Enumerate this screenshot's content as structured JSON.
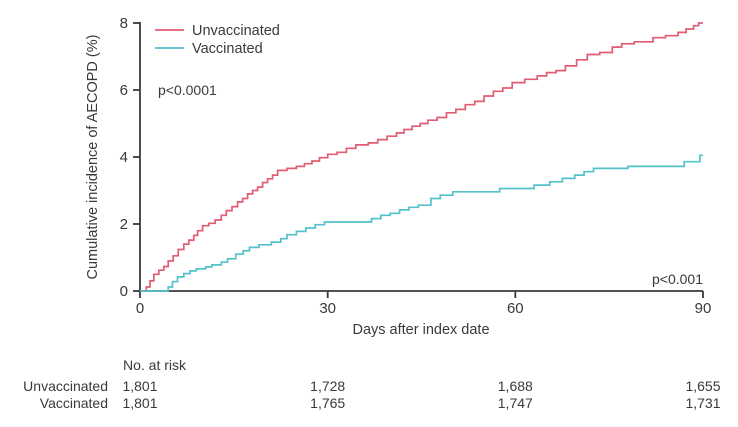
{
  "chart_data": {
    "type": "line",
    "subtype": "kaplan-meier-step",
    "title": "",
    "xlabel": "Days after index date",
    "ylabel": "Cumulative incidence of AECOPD (%)",
    "xlim": [
      0,
      90
    ],
    "ylim": [
      0,
      8
    ],
    "x_ticks": [
      0,
      30,
      60,
      90
    ],
    "y_ticks": [
      0,
      2,
      4,
      6,
      8
    ],
    "grid": false,
    "legend_position": "upper-left-inside",
    "axis_color": "#3a3a3a",
    "annotations": [
      {
        "text": "p<0.0001",
        "position": "upper-left"
      },
      {
        "text": "p<0.001",
        "position": "lower-right"
      }
    ],
    "series": [
      {
        "name": "Unvaccinated",
        "color": "#e25c72",
        "step": true,
        "points": [
          [
            0,
            0
          ],
          [
            1,
            0.12
          ],
          [
            1.6,
            0.3
          ],
          [
            2.2,
            0.5
          ],
          [
            3,
            0.62
          ],
          [
            3.8,
            0.73
          ],
          [
            4.5,
            0.9
          ],
          [
            5.3,
            1.05
          ],
          [
            6.1,
            1.24
          ],
          [
            7,
            1.4
          ],
          [
            7.8,
            1.52
          ],
          [
            8.6,
            1.66
          ],
          [
            9.2,
            1.8
          ],
          [
            10,
            1.95
          ],
          [
            11,
            2.02
          ],
          [
            12,
            2.12
          ],
          [
            13,
            2.26
          ],
          [
            13.8,
            2.4
          ],
          [
            14.7,
            2.52
          ],
          [
            15.6,
            2.66
          ],
          [
            16.4,
            2.76
          ],
          [
            17.2,
            2.9
          ],
          [
            18,
            3.0
          ],
          [
            18.8,
            3.1
          ],
          [
            19.6,
            3.24
          ],
          [
            20.4,
            3.35
          ],
          [
            21.2,
            3.46
          ],
          [
            22,
            3.6
          ],
          [
            23.5,
            3.66
          ],
          [
            25,
            3.72
          ],
          [
            26.3,
            3.8
          ],
          [
            27.5,
            3.88
          ],
          [
            28.7,
            3.98
          ],
          [
            30,
            4.08
          ],
          [
            31.5,
            4.14
          ],
          [
            33,
            4.26
          ],
          [
            34.5,
            4.36
          ],
          [
            36.5,
            4.42
          ],
          [
            38,
            4.52
          ],
          [
            39.5,
            4.62
          ],
          [
            41,
            4.72
          ],
          [
            42.2,
            4.82
          ],
          [
            43.5,
            4.92
          ],
          [
            44.8,
            5.0
          ],
          [
            46,
            5.1
          ],
          [
            47.5,
            5.18
          ],
          [
            49,
            5.32
          ],
          [
            50.5,
            5.42
          ],
          [
            52,
            5.56
          ],
          [
            53.5,
            5.66
          ],
          [
            55,
            5.82
          ],
          [
            56.5,
            5.96
          ],
          [
            58,
            6.06
          ],
          [
            59.5,
            6.22
          ],
          [
            61.5,
            6.32
          ],
          [
            63.5,
            6.42
          ],
          [
            65,
            6.52
          ],
          [
            66.5,
            6.58
          ],
          [
            68,
            6.72
          ],
          [
            69.8,
            6.9
          ],
          [
            71.5,
            7.06
          ],
          [
            73.5,
            7.12
          ],
          [
            75.5,
            7.28
          ],
          [
            77,
            7.38
          ],
          [
            79,
            7.44
          ],
          [
            82,
            7.56
          ],
          [
            84,
            7.62
          ],
          [
            86,
            7.72
          ],
          [
            87.3,
            7.82
          ],
          [
            88.5,
            7.92
          ],
          [
            89.3,
            8.0
          ],
          [
            90,
            8.0
          ]
        ]
      },
      {
        "name": "Vaccinated",
        "color": "#53c2cb",
        "step": true,
        "points": [
          [
            0,
            0
          ],
          [
            4.5,
            0.12
          ],
          [
            5.2,
            0.28
          ],
          [
            6,
            0.42
          ],
          [
            7,
            0.52
          ],
          [
            8,
            0.6
          ],
          [
            9,
            0.66
          ],
          [
            10.5,
            0.72
          ],
          [
            11.5,
            0.78
          ],
          [
            13,
            0.86
          ],
          [
            14,
            0.96
          ],
          [
            15.3,
            1.1
          ],
          [
            16.5,
            1.2
          ],
          [
            17.5,
            1.3
          ],
          [
            19,
            1.38
          ],
          [
            21,
            1.46
          ],
          [
            22.5,
            1.56
          ],
          [
            23.5,
            1.68
          ],
          [
            25,
            1.78
          ],
          [
            26.5,
            1.88
          ],
          [
            28,
            1.98
          ],
          [
            29.5,
            2.06
          ],
          [
            37,
            2.16
          ],
          [
            38.5,
            2.26
          ],
          [
            40,
            2.32
          ],
          [
            41.5,
            2.42
          ],
          [
            43,
            2.5
          ],
          [
            44.5,
            2.56
          ],
          [
            46.5,
            2.76
          ],
          [
            48,
            2.86
          ],
          [
            50,
            2.96
          ],
          [
            57.5,
            3.06
          ],
          [
            63,
            3.16
          ],
          [
            65.5,
            3.26
          ],
          [
            67.5,
            3.36
          ],
          [
            69.5,
            3.46
          ],
          [
            71,
            3.56
          ],
          [
            72.5,
            3.66
          ],
          [
            78,
            3.72
          ],
          [
            87,
            3.86
          ],
          [
            89.5,
            4.05
          ],
          [
            90,
            4.05
          ]
        ]
      }
    ]
  },
  "risk_table": {
    "header": "No. at risk",
    "columns_days": [
      0,
      30,
      60,
      90
    ],
    "rows": [
      {
        "label": "Unvaccinated",
        "color": "#e25c72",
        "values": [
          "1,801",
          "1,728",
          "1,688",
          "1,655"
        ]
      },
      {
        "label": "Vaccinated",
        "color": "#53c2cb",
        "values": [
          "1,801",
          "1,765",
          "1,747",
          "1,731"
        ]
      }
    ]
  }
}
